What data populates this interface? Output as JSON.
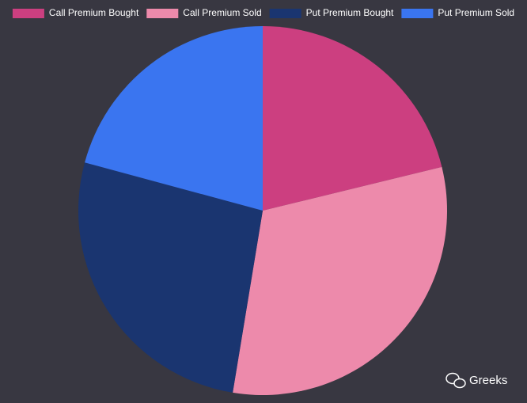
{
  "chart_data": {
    "type": "pie",
    "categories": [
      "Call Premium Bought",
      "Call Premium Sold",
      "Put Premium Bought",
      "Put Premium Sold"
    ],
    "values": [
      21.2,
      31.4,
      26.6,
      20.8
    ],
    "colors": [
      "#cc3f80",
      "#ed8aab",
      "#1a3570",
      "#3a75f0"
    ],
    "legend": "top",
    "watermark": "Greeks"
  }
}
